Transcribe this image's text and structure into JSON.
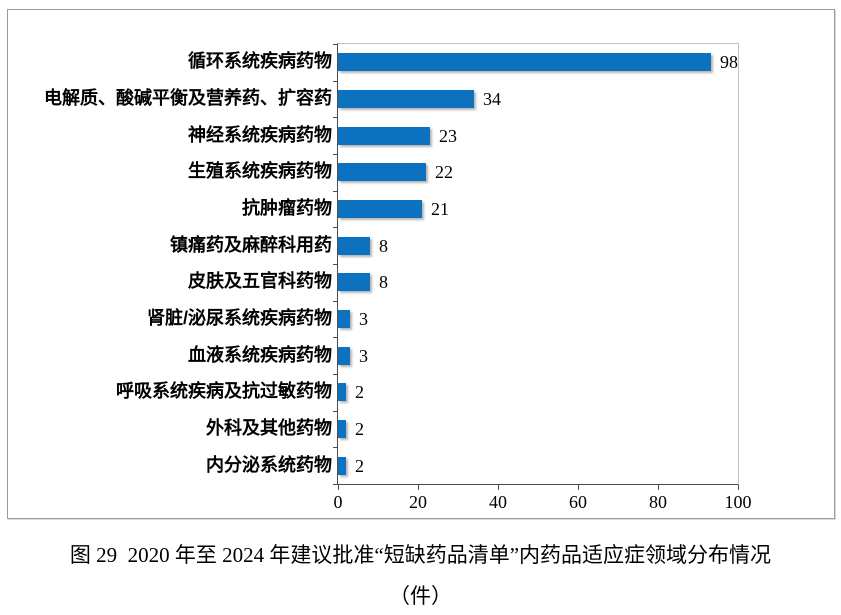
{
  "chart_data": {
    "type": "bar",
    "orientation": "horizontal",
    "title": "图 29  2020 年至 2024 年建议批准“短缺药品清单”内药品适应症领域分布情况",
    "unit_line": "（件）",
    "categories": [
      "循环系统疾病药物",
      "电解质、酸碱平衡及营养药、扩容药",
      "神经系统疾病药物",
      "生殖系统疾病药物",
      "抗肿瘤药物",
      "镇痛药及麻醉科用药",
      "皮肤及五官科药物",
      "肾脏/泌尿系统疾病药物",
      "血液系统疾病药物",
      "呼吸系统疾病及抗过敏药物",
      "外科及其他药物",
      "内分泌系统药物"
    ],
    "values": [
      98,
      34,
      23,
      22,
      21,
      8,
      8,
      3,
      3,
      2,
      2,
      2
    ],
    "x_ticks": [
      0,
      20,
      40,
      60,
      80,
      100
    ],
    "xlim": [
      0,
      100
    ],
    "bar_color": "#0c71bf",
    "grid": "off",
    "legend": "none",
    "data_labels": "outside-end"
  }
}
